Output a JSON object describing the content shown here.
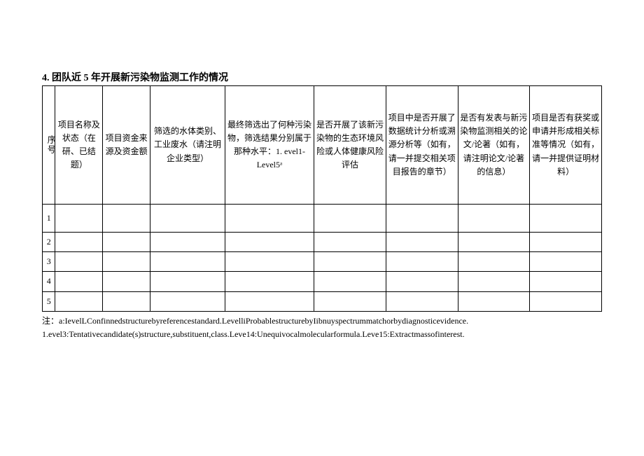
{
  "title": "4. 团队近 5 年开展新污染物监测工作的情况",
  "columns": {
    "idx": "序号",
    "c1": "项目名称及状态（在研、已结题）",
    "c2": "项目资金来源及资金额",
    "c3": "筛选的水体类别、工业废水（请注明企业类型）",
    "c4": "最终筛选出了何种污染物，筛选结果分别属于那种水平：1. evel1-Level5ᵃ",
    "c5": "是否开展了该新污染物的生态环境风险或人体健康风险评估",
    "c6": "项目中是否开展了数据统计分析或溯源分析等（如有，请一并提交相关项目报告的章节）",
    "c7": "是否有发表与新污染物监测相关的论文/论著（如有，请注明论文/论著的信息）",
    "c8": "项目是否有获奖或申请并形成相关标准等情况（如有，请一并提供证明材料）"
  },
  "rows": [
    {
      "idx": "1"
    },
    {
      "idx": "2"
    },
    {
      "idx": "3"
    },
    {
      "idx": "4"
    },
    {
      "idx": "5"
    }
  ],
  "footnote_prefix": "注：",
  "footnote_a": "a:IevelLConfinnedstructurebyreferencestandard.LevelliProbablestructurebyIibnuyspectrummatchorbydiagnosticevidence.",
  "footnote_b": "1.evel3:Tentativecandidate(s)structure,substituent,class.Leve14:Unequivocalmolecularformula.Leve15:Extractmassofinterest."
}
